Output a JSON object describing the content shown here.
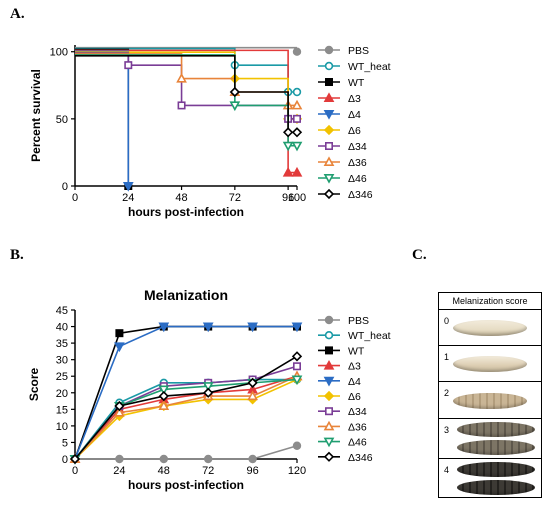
{
  "panels": {
    "a": "A.",
    "b": "B.",
    "c": "C."
  },
  "legend": [
    "PBS",
    "WT_heat",
    "WT",
    "Δ3",
    "Δ4",
    "Δ6",
    "Δ34",
    "Δ36",
    "Δ46",
    "Δ346"
  ],
  "colors": {
    "PBS": "#8c8c8c",
    "WT_heat": "#1a9aa6",
    "WT": "#000000",
    "Δ3": "#e23a3a",
    "Δ4": "#2b6cc4",
    "Δ6": "#f2c200",
    "Δ34": "#7a3d96",
    "Δ36": "#e8843a",
    "Δ46": "#1f9e70",
    "Δ346": "#000000"
  },
  "chart_data": [
    {
      "type": "line",
      "step": true,
      "title": "",
      "xlabel": "hours post-infection",
      "ylabel": "Percent survival",
      "xlim": [
        0,
        100
      ],
      "ylim": [
        0,
        105
      ],
      "xticks": [
        0,
        24,
        48,
        72,
        96,
        100
      ],
      "yticks": [
        0,
        50,
        100
      ],
      "series": [
        {
          "name": "PBS",
          "marker": "circle",
          "fill": true,
          "x": [
            0,
            100
          ],
          "y": [
            100,
            100
          ]
        },
        {
          "name": "WT_heat",
          "marker": "circle",
          "fill": false,
          "x": [
            0,
            72,
            96,
            100
          ],
          "y": [
            100,
            90,
            70,
            70
          ]
        },
        {
          "name": "WT",
          "marker": "square",
          "fill": true,
          "x": [
            0,
            24
          ],
          "y": [
            100,
            0
          ]
        },
        {
          "name": "Δ3",
          "marker": "triangle-up",
          "fill": true,
          "x": [
            0,
            96,
            100
          ],
          "y": [
            100,
            10,
            10
          ]
        },
        {
          "name": "Δ4",
          "marker": "triangle-down",
          "fill": true,
          "x": [
            0,
            24
          ],
          "y": [
            100,
            0
          ]
        },
        {
          "name": "Δ6",
          "marker": "diamond",
          "fill": true,
          "x": [
            0,
            72,
            96,
            100
          ],
          "y": [
            100,
            80,
            50,
            50
          ]
        },
        {
          "name": "Δ34",
          "marker": "square",
          "fill": false,
          "x": [
            0,
            24,
            48,
            96,
            100
          ],
          "y": [
            100,
            90,
            60,
            50,
            50
          ]
        },
        {
          "name": "Δ36",
          "marker": "triangle-up",
          "fill": false,
          "x": [
            0,
            48,
            72,
            96,
            100
          ],
          "y": [
            100,
            80,
            70,
            60,
            60
          ]
        },
        {
          "name": "Δ46",
          "marker": "triangle-down",
          "fill": false,
          "x": [
            0,
            72,
            96,
            100
          ],
          "y": [
            100,
            60,
            30,
            30
          ]
        },
        {
          "name": "Δ346",
          "marker": "diamond",
          "fill": false,
          "x": [
            0,
            72,
            96,
            100
          ],
          "y": [
            100,
            70,
            40,
            40
          ]
        }
      ]
    },
    {
      "type": "line",
      "step": false,
      "title": "Melanization",
      "xlabel": "hours post-infection",
      "ylabel": "Score",
      "xlim": [
        0,
        120
      ],
      "ylim": [
        0,
        45
      ],
      "xticks": [
        0,
        24,
        48,
        72,
        96,
        120
      ],
      "yticks": [
        0,
        5,
        10,
        15,
        20,
        25,
        30,
        35,
        40,
        45
      ],
      "x": [
        0,
        24,
        48,
        72,
        96,
        120
      ],
      "series": [
        {
          "name": "PBS",
          "marker": "circle",
          "fill": true,
          "values": [
            0,
            0,
            0,
            0,
            0,
            4
          ]
        },
        {
          "name": "WT_heat",
          "marker": "circle",
          "fill": false,
          "values": [
            0,
            17,
            23,
            23,
            24,
            24
          ]
        },
        {
          "name": "WT",
          "marker": "square",
          "fill": true,
          "values": [
            0,
            38,
            40,
            40,
            40,
            40
          ]
        },
        {
          "name": "Δ3",
          "marker": "triangle-up",
          "fill": true,
          "values": [
            0,
            15,
            18,
            20,
            21,
            25
          ]
        },
        {
          "name": "Δ4",
          "marker": "triangle-down",
          "fill": true,
          "values": [
            0,
            34,
            40,
            40,
            40,
            40
          ]
        },
        {
          "name": "Δ6",
          "marker": "diamond",
          "fill": true,
          "values": [
            0,
            13,
            16,
            18,
            18,
            24
          ]
        },
        {
          "name": "Δ34",
          "marker": "square",
          "fill": false,
          "values": [
            0,
            16,
            22,
            23,
            24,
            28
          ]
        },
        {
          "name": "Δ36",
          "marker": "triangle-up",
          "fill": false,
          "values": [
            0,
            14,
            16,
            19,
            19,
            25
          ]
        },
        {
          "name": "Δ46",
          "marker": "triangle-down",
          "fill": false,
          "values": [
            0,
            16,
            21,
            22,
            23,
            24
          ]
        },
        {
          "name": "Δ346",
          "marker": "diamond",
          "fill": false,
          "values": [
            0,
            16,
            19,
            20,
            23,
            31
          ]
        }
      ]
    }
  ],
  "melanization_table": {
    "title": "Melanization score",
    "rows": [
      {
        "score": "0",
        "color": "#e6dcc4",
        "pattern": "pale"
      },
      {
        "score": "1",
        "color": "#dccdb2",
        "pattern": "pale"
      },
      {
        "score": "2",
        "color": "#c9b595",
        "pattern": "light"
      },
      {
        "score": "3",
        "color": "#7d7565",
        "pattern": "spotted"
      },
      {
        "score": "4",
        "color": "#3d3a35",
        "pattern": "dark"
      }
    ]
  }
}
